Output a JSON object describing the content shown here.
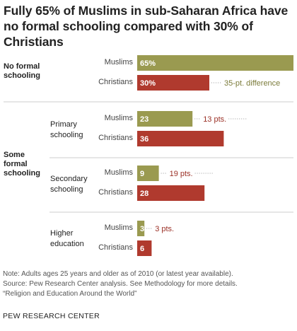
{
  "title": "Fully 65% of Muslims in sub-Saharan Africa have no formal schooling compared with 30% of Christians",
  "colors": {
    "muslims": "#9a9a50",
    "christians": "#b03a2e",
    "muslims_diff_text": "#7b7b3a",
    "christians_diff_text": "#9b3026",
    "divider": "#cccccc",
    "dots": "#999999"
  },
  "chart_data": {
    "type": "bar",
    "orientation": "horizontal",
    "title": "Fully 65% of Muslims in sub-Saharan Africa have no formal schooling compared with 30% of Christians",
    "xlim": [
      0,
      65
    ],
    "series_names": [
      "Muslims",
      "Christians"
    ],
    "categories": [
      {
        "label": "No formal schooling",
        "group": "",
        "muslims": 65,
        "christians": 30,
        "muslims_label": "65%",
        "christians_label": "30%",
        "diff_label": "35-pt. difference",
        "diff_after": "christians"
      },
      {
        "label": "Primary schooling",
        "group": "Some formal schooling",
        "muslims": 23,
        "christians": 36,
        "muslims_label": "23",
        "christians_label": "36",
        "diff_label": "13 pts.",
        "diff_after": "muslims"
      },
      {
        "label": "Secondary schooling",
        "group": "Some formal schooling",
        "muslims": 9,
        "christians": 28,
        "muslims_label": "9",
        "christians_label": "28",
        "diff_label": "19 pts.",
        "diff_after": "muslims"
      },
      {
        "label": "Higher education",
        "group": "Some formal schooling",
        "muslims": 3,
        "christians": 6,
        "muslims_label": "3",
        "christians_label": "6",
        "diff_label": "3 pts.",
        "diff_after": "muslims"
      }
    ]
  },
  "labels": {
    "no_formal_line1": "No formal",
    "no_formal_line2": "schooling",
    "some_formal_line1": "Some",
    "some_formal_line2": "formal",
    "some_formal_line3": "schooling",
    "primary_line1": "Primary",
    "primary_line2": "schooling",
    "secondary_line1": "Secondary",
    "secondary_line2": "schooling",
    "higher_line1": "Higher",
    "higher_line2": "education",
    "muslims": "Muslims",
    "christians": "Christians"
  },
  "notes": {
    "line1": "Note: Adults ages 25 years and older as of 2010 (or latest year available).",
    "line2": "Source: Pew Research Center analysis. See Methodology for more details.",
    "line3": "“Religion and Education Around the World”"
  },
  "footer": "PEW RESEARCH CENTER"
}
